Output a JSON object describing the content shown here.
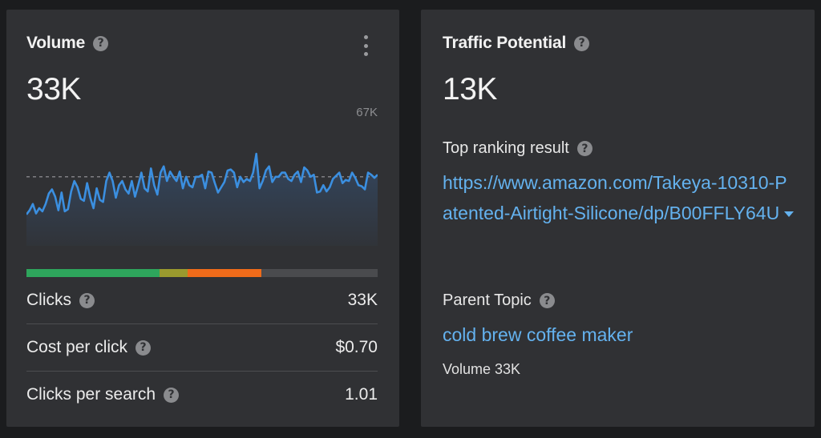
{
  "volume_card": {
    "title": "Volume",
    "value": "33K",
    "chart_max_label": "67K",
    "bar_segments": [
      {
        "share": 0.38,
        "color": "#2ea55c"
      },
      {
        "share": 0.08,
        "color": "#9a9a2e"
      },
      {
        "share": 0.21,
        "color": "#ef6b1a"
      },
      {
        "share": 0.33,
        "color": "#4a4b4e"
      }
    ],
    "metrics": [
      {
        "label": "Clicks",
        "value": "33K"
      },
      {
        "label": "Cost per click",
        "value": "$0.70"
      },
      {
        "label": "Clicks per search",
        "value": "1.01"
      }
    ]
  },
  "traffic_card": {
    "title": "Traffic Potential",
    "value": "13K",
    "top_result_label": "Top ranking result",
    "top_result_url": "https://www.amazon.com/Takeya-10310-Patented-Airtight-Silicone/dp/B00FFLY64U",
    "parent_topic_label": "Parent Topic",
    "parent_topic": "cold brew coffee maker",
    "parent_volume": "Volume 33K"
  },
  "chart_data": {
    "type": "line",
    "title": "",
    "xlabel": "",
    "ylabel": "",
    "ylim": [
      0,
      67000
    ],
    "y_max_label": "67K",
    "average": 33000,
    "line_color": "#3b8fe0",
    "values": [
      15000,
      17000,
      20000,
      15500,
      18000,
      16500,
      20000,
      25000,
      27000,
      23500,
      17000,
      25500,
      16500,
      17500,
      26000,
      31000,
      28000,
      22500,
      21500,
      30000,
      23000,
      18000,
      27500,
      22000,
      21000,
      31000,
      35000,
      31000,
      23000,
      29000,
      31000,
      27000,
      25000,
      31000,
      23500,
      29000,
      35000,
      27500,
      26000,
      37000,
      29000,
      24500,
      35000,
      38000,
      31000,
      35500,
      33000,
      31000,
      35500,
      27500,
      33000,
      29000,
      28000,
      33000,
      33000,
      34000,
      27500,
      35500,
      35000,
      30000,
      25500,
      28000,
      30500,
      36000,
      36500,
      35000,
      28000,
      33000,
      30500,
      32000,
      31000,
      35000,
      44000,
      27500,
      31000,
      36000,
      38000,
      30500,
      33000,
      33000,
      35000,
      35000,
      32000,
      31000,
      34000,
      35500,
      30500,
      37500,
      36000,
      33000,
      34000,
      25500,
      26000,
      29000,
      26000,
      28000,
      32000,
      33500,
      35000,
      30000,
      31500,
      31000,
      35000,
      32500,
      29000,
      28500,
      27000,
      35000,
      34000,
      32500,
      34000
    ]
  }
}
